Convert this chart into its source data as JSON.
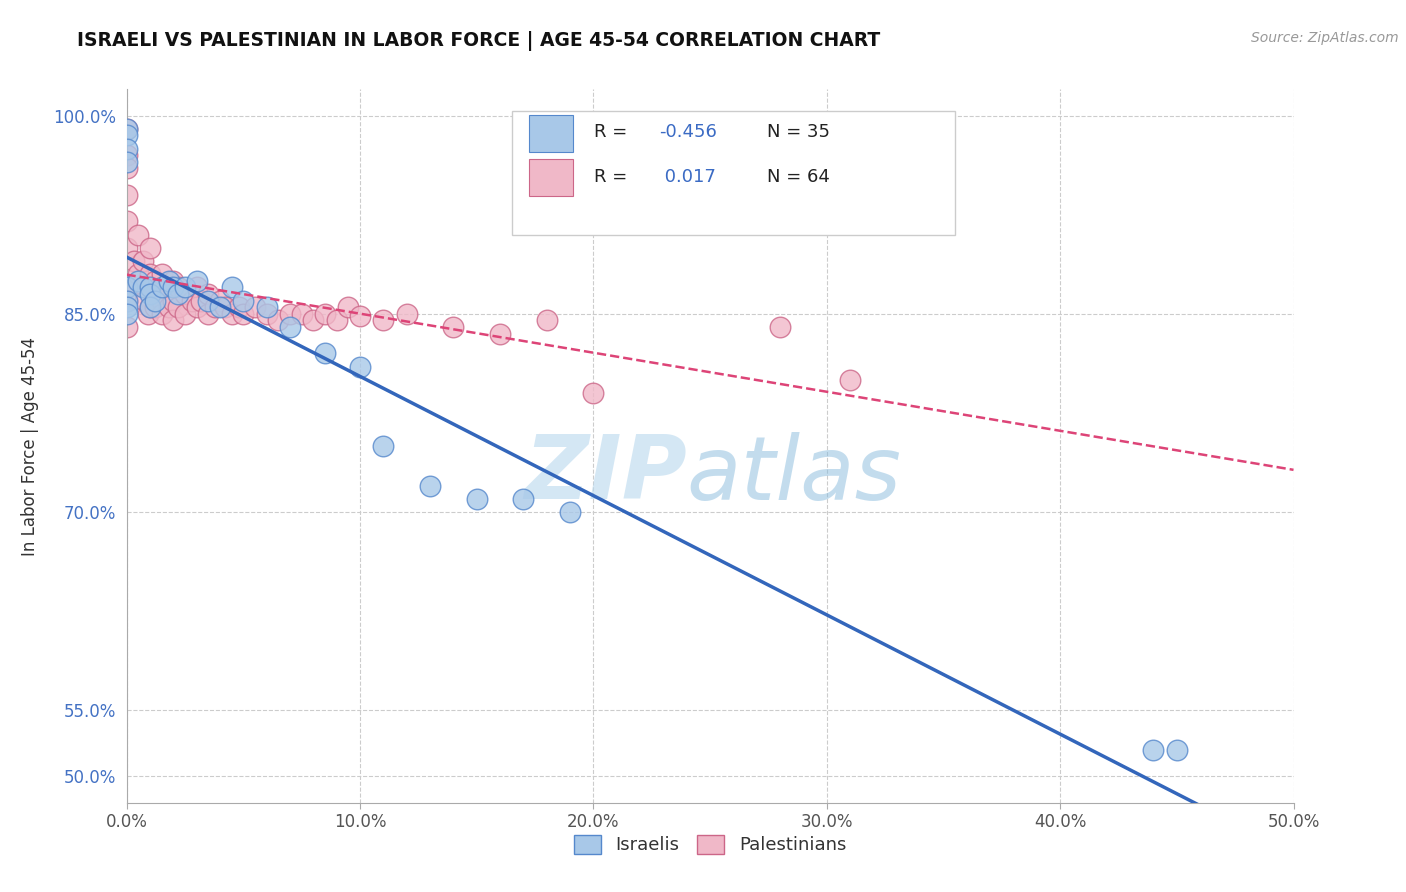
{
  "title": "ISRAELI VS PALESTINIAN IN LABOR FORCE | AGE 45-54 CORRELATION CHART",
  "source_text": "Source: ZipAtlas.com",
  "ylabel": "In Labor Force | Age 45-54",
  "xlim": [
    0.0,
    0.5
  ],
  "ylim": [
    0.48,
    1.02
  ],
  "ytick_labels": [
    "50.0%",
    "55.0%",
    "70.0%",
    "85.0%",
    "100.0%"
  ],
  "ytick_vals": [
    0.5,
    0.55,
    0.7,
    0.85,
    1.0
  ],
  "xtick_labels": [
    "0.0%",
    "10.0%",
    "20.0%",
    "30.0%",
    "40.0%",
    "50.0%"
  ],
  "xtick_vals": [
    0.0,
    0.1,
    0.2,
    0.3,
    0.4,
    0.5
  ],
  "legend_bottom": [
    "Israelis",
    "Palestinians"
  ],
  "R_israeli": -0.456,
  "N_israeli": 35,
  "R_palestinian": 0.017,
  "N_palestinian": 64,
  "watermark_text": "ZIP",
  "watermark_text2": "atlas",
  "israeli_color": "#a8c8e8",
  "israeli_edge_color": "#5588cc",
  "israeli_line_color": "#3366bb",
  "palestinian_color": "#f0b8c8",
  "palestinian_edge_color": "#cc6688",
  "palestinian_line_color": "#dd4477",
  "israeli_scatter_x": [
    0.0,
    0.0,
    0.0,
    0.0,
    0.0,
    0.0,
    0.0,
    0.0,
    0.005,
    0.007,
    0.01,
    0.01,
    0.01,
    0.012,
    0.015,
    0.018,
    0.02,
    0.022,
    0.025,
    0.03,
    0.035,
    0.04,
    0.045,
    0.05,
    0.06,
    0.07,
    0.085,
    0.1,
    0.11,
    0.13,
    0.15,
    0.17,
    0.19,
    0.44,
    0.45
  ],
  "israeli_scatter_y": [
    0.99,
    0.985,
    0.975,
    0.965,
    0.87,
    0.86,
    0.855,
    0.85,
    0.875,
    0.87,
    0.87,
    0.865,
    0.855,
    0.86,
    0.87,
    0.875,
    0.87,
    0.865,
    0.87,
    0.875,
    0.86,
    0.855,
    0.87,
    0.86,
    0.855,
    0.84,
    0.82,
    0.81,
    0.75,
    0.72,
    0.71,
    0.71,
    0.7,
    0.52,
    0.52
  ],
  "palestinian_scatter_x": [
    0.0,
    0.0,
    0.0,
    0.0,
    0.0,
    0.0,
    0.0,
    0.0,
    0.0,
    0.003,
    0.005,
    0.005,
    0.007,
    0.008,
    0.008,
    0.009,
    0.01,
    0.01,
    0.01,
    0.01,
    0.012,
    0.012,
    0.015,
    0.015,
    0.015,
    0.018,
    0.018,
    0.02,
    0.02,
    0.02,
    0.022,
    0.022,
    0.025,
    0.025,
    0.028,
    0.03,
    0.03,
    0.032,
    0.035,
    0.035,
    0.038,
    0.04,
    0.042,
    0.045,
    0.048,
    0.05,
    0.055,
    0.06,
    0.065,
    0.07,
    0.075,
    0.08,
    0.085,
    0.09,
    0.095,
    0.1,
    0.11,
    0.12,
    0.14,
    0.16,
    0.18,
    0.2,
    0.28,
    0.31
  ],
  "palestinian_scatter_y": [
    0.99,
    0.97,
    0.96,
    0.94,
    0.92,
    0.9,
    0.87,
    0.86,
    0.84,
    0.89,
    0.91,
    0.88,
    0.89,
    0.87,
    0.86,
    0.85,
    0.9,
    0.88,
    0.87,
    0.855,
    0.875,
    0.855,
    0.88,
    0.86,
    0.85,
    0.87,
    0.855,
    0.875,
    0.86,
    0.845,
    0.87,
    0.855,
    0.865,
    0.85,
    0.86,
    0.87,
    0.855,
    0.86,
    0.865,
    0.85,
    0.855,
    0.86,
    0.855,
    0.85,
    0.855,
    0.85,
    0.855,
    0.85,
    0.845,
    0.85,
    0.85,
    0.845,
    0.85,
    0.845,
    0.855,
    0.848,
    0.845,
    0.85,
    0.84,
    0.835,
    0.845,
    0.79,
    0.84,
    0.8
  ]
}
